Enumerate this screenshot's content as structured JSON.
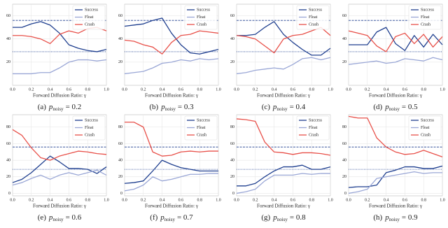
{
  "chart_data": [
    {
      "type": "line",
      "caption_label": "(a)",
      "caption_var": "p",
      "caption_sub": "noisy",
      "caption_value": "= 0.2",
      "x_label": "Forward Diffusion Ratio: γ",
      "x": [
        0,
        0.1,
        0.2,
        0.3,
        0.4,
        0.5,
        0.6,
        0.7,
        0.8,
        0.9,
        1.0
      ],
      "xlim": [
        0,
        1
      ],
      "xticks": [
        {
          "value": 0,
          "label": "0.0"
        },
        {
          "value": 0.2,
          "label": "0.2"
        },
        {
          "value": 0.4,
          "label": "0.4"
        },
        {
          "value": 0.6,
          "label": "0.6"
        },
        {
          "value": 0.8,
          "label": "0.8"
        },
        {
          "value": 1,
          "label": "1.0"
        }
      ],
      "ylim": [
        0,
        70
      ],
      "yticks": [
        20,
        40,
        60
      ],
      "grid": true,
      "legend": "upper right",
      "reference_lines": [
        {
          "value": 56,
          "color": "#1f3f8f",
          "style": "dashed"
        },
        {
          "value": 29,
          "color": "#1f3f8f",
          "style": "dotted"
        }
      ],
      "series": [
        {
          "name": "Success",
          "color": "#1f3f8f",
          "values": [
            50,
            50,
            53,
            55,
            52,
            45,
            35,
            32,
            30,
            29,
            31
          ]
        },
        {
          "name": "Float",
          "color": "#9aa7d6",
          "values": [
            10,
            10,
            10,
            11,
            11,
            15,
            20,
            22,
            22,
            21,
            22
          ]
        },
        {
          "name": "Crash",
          "color": "#e8514a",
          "values": [
            43,
            43,
            42,
            40,
            36,
            44,
            47,
            45,
            49,
            50,
            47
          ]
        }
      ]
    },
    {
      "type": "line",
      "caption_label": "(b)",
      "caption_var": "p",
      "caption_sub": "noisy",
      "caption_value": "= 0.3",
      "x_label": "Forward Diffusion Ratio: γ",
      "x": [
        0,
        0.1,
        0.2,
        0.3,
        0.4,
        0.5,
        0.6,
        0.7,
        0.8,
        0.9,
        1.0
      ],
      "xlim": [
        0,
        1
      ],
      "xticks": [
        {
          "value": 0,
          "label": "0.0"
        },
        {
          "value": 0.2,
          "label": "0.2"
        },
        {
          "value": 0.4,
          "label": "0.4"
        },
        {
          "value": 0.6,
          "label": "0.6"
        },
        {
          "value": 0.8,
          "label": "0.8"
        },
        {
          "value": 1,
          "label": "1.0"
        }
      ],
      "ylim": [
        0,
        70
      ],
      "yticks": [
        20,
        40,
        60
      ],
      "grid": true,
      "legend": "upper right",
      "reference_lines": [
        {
          "value": 56,
          "color": "#1f3f8f",
          "style": "dashed"
        },
        {
          "value": 29,
          "color": "#1f3f8f",
          "style": "dotted"
        }
      ],
      "series": [
        {
          "name": "Success",
          "color": "#1f3f8f",
          "values": [
            51,
            52,
            53,
            56,
            58,
            45,
            35,
            28,
            27,
            29,
            31
          ]
        },
        {
          "name": "Float",
          "color": "#9aa7d6",
          "values": [
            10,
            11,
            12,
            15,
            19,
            20,
            22,
            21,
            23,
            22,
            23
          ]
        },
        {
          "name": "Crash",
          "color": "#e8514a",
          "values": [
            39,
            38,
            35,
            33,
            27,
            37,
            43,
            44,
            47,
            46,
            45
          ]
        }
      ]
    },
    {
      "type": "line",
      "caption_label": "(c)",
      "caption_var": "p",
      "caption_sub": "noisy",
      "caption_value": "= 0.4",
      "x_label": "Forward Diffusion Ratio: γ",
      "x": [
        0,
        0.1,
        0.2,
        0.3,
        0.4,
        0.5,
        0.6,
        0.7,
        0.8,
        0.9,
        1.0
      ],
      "xlim": [
        0,
        1
      ],
      "xticks": [
        {
          "value": 0,
          "label": "0.0"
        },
        {
          "value": 0.2,
          "label": "0.2"
        },
        {
          "value": 0.4,
          "label": "0.4"
        },
        {
          "value": 0.6,
          "label": "0.6"
        },
        {
          "value": 0.8,
          "label": "0.8"
        },
        {
          "value": 1,
          "label": "1.0"
        }
      ],
      "ylim": [
        0,
        70
      ],
      "yticks": [
        20,
        40,
        60
      ],
      "grid": true,
      "legend": "upper right",
      "reference_lines": [
        {
          "value": 56,
          "color": "#1f3f8f",
          "style": "dashed"
        },
        {
          "value": 29,
          "color": "#1f3f8f",
          "style": "dotted"
        }
      ],
      "series": [
        {
          "name": "Success",
          "color": "#1f3f8f",
          "values": [
            43,
            43,
            44,
            50,
            55,
            44,
            37,
            31,
            26,
            26,
            32
          ]
        },
        {
          "name": "Float",
          "color": "#9aa7d6",
          "values": [
            10,
            11,
            13,
            14,
            15,
            14,
            18,
            23,
            24,
            22,
            24
          ]
        },
        {
          "name": "Crash",
          "color": "#e8514a",
          "values": [
            43,
            42,
            40,
            34,
            28,
            40,
            43,
            44,
            47,
            50,
            43
          ]
        }
      ]
    },
    {
      "type": "line",
      "caption_label": "(d)",
      "caption_var": "p",
      "caption_sub": "noisy",
      "caption_value": "= 0.5",
      "x_label": "Forward Diffusion Ratio: γ",
      "x": [
        0,
        0.1,
        0.2,
        0.3,
        0.4,
        0.5,
        0.6,
        0.7,
        0.8,
        0.9,
        1.0
      ],
      "xlim": [
        0,
        1
      ],
      "xticks": [
        {
          "value": 0,
          "label": "0.0"
        },
        {
          "value": 0.2,
          "label": "0.2"
        },
        {
          "value": 0.4,
          "label": "0.4"
        },
        {
          "value": 0.6,
          "label": "0.6"
        },
        {
          "value": 0.8,
          "label": "0.8"
        },
        {
          "value": 1,
          "label": "1.0"
        }
      ],
      "ylim": [
        0,
        70
      ],
      "yticks": [
        20,
        40,
        60
      ],
      "grid": true,
      "legend": "upper right",
      "reference_lines": [
        {
          "value": 56,
          "color": "#1f3f8f",
          "style": "dashed"
        },
        {
          "value": 29,
          "color": "#1f3f8f",
          "style": "dotted"
        }
      ],
      "series": [
        {
          "name": "Success",
          "color": "#1f3f8f",
          "values": [
            35,
            35,
            35,
            46,
            50,
            36,
            30,
            43,
            33,
            44,
            35
          ]
        },
        {
          "name": "Float",
          "color": "#9aa7d6",
          "values": [
            18,
            19,
            20,
            21,
            19,
            20,
            23,
            22,
            21,
            24,
            22
          ]
        },
        {
          "name": "Crash",
          "color": "#e8514a",
          "values": [
            47,
            45,
            43,
            34,
            29,
            42,
            45,
            36,
            44,
            33,
            42
          ]
        }
      ]
    },
    {
      "type": "line",
      "caption_label": "(e)",
      "caption_var": "p",
      "caption_sub": "noisy",
      "caption_value": "= 0.6",
      "x_label": "Forward Diffusion Ratio: γ",
      "x": [
        0,
        0.1,
        0.2,
        0.3,
        0.4,
        0.5,
        0.6,
        0.7,
        0.8,
        0.9,
        1.0
      ],
      "xlim": [
        0,
        1
      ],
      "xticks": [
        {
          "value": 0,
          "label": "0.0"
        },
        {
          "value": 0.2,
          "label": "0.2"
        },
        {
          "value": 0.4,
          "label": "0.4"
        },
        {
          "value": 0.6,
          "label": "0.6"
        },
        {
          "value": 0.8,
          "label": "0.8"
        },
        {
          "value": 1,
          "label": "1.0"
        }
      ],
      "ylim": [
        -3,
        95
      ],
      "yticks": [
        0,
        20,
        40,
        60,
        80
      ],
      "grid": true,
      "legend": "upper right",
      "reference_lines": [
        {
          "value": 56,
          "color": "#1f3f8f",
          "style": "dashed"
        },
        {
          "value": 29,
          "color": "#1f3f8f",
          "style": "dotted"
        }
      ],
      "series": [
        {
          "name": "Success",
          "color": "#1f3f8f",
          "values": [
            13,
            17,
            25,
            35,
            45,
            38,
            30,
            30,
            29,
            24,
            32
          ]
        },
        {
          "name": "Float",
          "color": "#9aa7d6",
          "values": [
            10,
            13,
            18,
            22,
            17,
            22,
            25,
            22,
            25,
            28,
            22
          ]
        },
        {
          "name": "Crash",
          "color": "#e8514a",
          "values": [
            77,
            70,
            55,
            43,
            40,
            45,
            48,
            51,
            50,
            48,
            47
          ]
        }
      ]
    },
    {
      "type": "line",
      "caption_label": "(f)",
      "caption_var": "p",
      "caption_sub": "noisy",
      "caption_value": "= 0.7",
      "x_label": "Forward Diffusion Ratio: γ",
      "x": [
        0,
        0.1,
        0.2,
        0.3,
        0.4,
        0.5,
        0.6,
        0.7,
        0.8,
        0.9,
        1.0
      ],
      "xlim": [
        0,
        1
      ],
      "xticks": [
        {
          "value": 0,
          "label": "0.0"
        },
        {
          "value": 0.2,
          "label": "0.2"
        },
        {
          "value": 0.4,
          "label": "0.4"
        },
        {
          "value": 0.6,
          "label": "0.6"
        },
        {
          "value": 0.8,
          "label": "0.8"
        },
        {
          "value": 1,
          "label": "1.0"
        }
      ],
      "ylim": [
        -3,
        95
      ],
      "yticks": [
        0,
        20,
        40,
        60,
        80
      ],
      "grid": true,
      "legend": "upper right",
      "reference_lines": [
        {
          "value": 56,
          "color": "#1f3f8f",
          "style": "dashed"
        },
        {
          "value": 29,
          "color": "#1f3f8f",
          "style": "dotted"
        }
      ],
      "series": [
        {
          "name": "Success",
          "color": "#1f3f8f",
          "values": [
            12,
            13,
            15,
            27,
            40,
            35,
            31,
            29,
            27,
            27,
            27
          ]
        },
        {
          "name": "Float",
          "color": "#9aa7d6",
          "values": [
            3,
            5,
            10,
            20,
            15,
            17,
            20,
            23,
            23,
            24,
            24
          ]
        },
        {
          "name": "Crash",
          "color": "#e8514a",
          "values": [
            86,
            86,
            80,
            50,
            45,
            46,
            50,
            51,
            50,
            51,
            51
          ]
        }
      ]
    },
    {
      "type": "line",
      "caption_label": "(g)",
      "caption_var": "p",
      "caption_sub": "noisy",
      "caption_value": "= 0.8",
      "x_label": "Forward Diffusion Ratio: γ",
      "x": [
        0,
        0.1,
        0.2,
        0.3,
        0.4,
        0.5,
        0.6,
        0.7,
        0.8,
        0.9,
        1.0
      ],
      "xlim": [
        0,
        1
      ],
      "xticks": [
        {
          "value": 0,
          "label": "0.0"
        },
        {
          "value": 0.2,
          "label": "0.2"
        },
        {
          "value": 0.4,
          "label": "0.4"
        },
        {
          "value": 0.6,
          "label": "0.6"
        },
        {
          "value": 0.8,
          "label": "0.8"
        },
        {
          "value": 1,
          "label": "1.0"
        }
      ],
      "ylim": [
        -3,
        95
      ],
      "yticks": [
        0,
        20,
        40,
        60,
        80
      ],
      "grid": true,
      "legend": "upper right",
      "reference_lines": [
        {
          "value": 56,
          "color": "#1f3f8f",
          "style": "dashed"
        },
        {
          "value": 29,
          "color": "#1f3f8f",
          "style": "dotted"
        }
      ],
      "series": [
        {
          "name": "Success",
          "color": "#1f3f8f",
          "values": [
            9,
            9,
            12,
            20,
            27,
            32,
            32,
            34,
            29,
            29,
            32
          ]
        },
        {
          "name": "Float",
          "color": "#9aa7d6",
          "values": [
            0,
            2,
            5,
            15,
            22,
            22,
            22,
            24,
            23,
            24,
            24
          ]
        },
        {
          "name": "Crash",
          "color": "#e8514a",
          "values": [
            90,
            89,
            87,
            62,
            50,
            49,
            47,
            49,
            49,
            48,
            46
          ]
        }
      ]
    },
    {
      "type": "line",
      "caption_label": "(h)",
      "caption_var": "p",
      "caption_sub": "noisy",
      "caption_value": "= 0.9",
      "x_label": "Forward Diffusion Ratio: γ",
      "x": [
        0,
        0.1,
        0.2,
        0.3,
        0.4,
        0.5,
        0.6,
        0.7,
        0.8,
        0.9,
        1.0
      ],
      "xlim": [
        0,
        1
      ],
      "xticks": [
        {
          "value": 0,
          "label": "0.0"
        },
        {
          "value": 0.2,
          "label": "0.2"
        },
        {
          "value": 0.4,
          "label": "0.4"
        },
        {
          "value": 0.6,
          "label": "0.6"
        },
        {
          "value": 0.8,
          "label": "0.8"
        },
        {
          "value": 1,
          "label": "1.0"
        }
      ],
      "ylim": [
        -3,
        95
      ],
      "yticks": [
        0,
        20,
        40,
        60,
        80
      ],
      "grid": true,
      "legend": "upper right",
      "reference_lines": [
        {
          "value": 56,
          "color": "#1f3f8f",
          "style": "dashed"
        },
        {
          "value": 29,
          "color": "#1f3f8f",
          "style": "dotted"
        }
      ],
      "series": [
        {
          "name": "Success",
          "color": "#1f3f8f",
          "values": [
            7,
            8,
            8,
            10,
            25,
            28,
            32,
            32,
            30,
            30,
            33
          ]
        },
        {
          "name": "Float",
          "color": "#9aa7d6",
          "values": [
            0,
            2,
            5,
            18,
            20,
            22,
            24,
            26,
            24,
            25,
            25
          ]
        },
        {
          "name": "Crash",
          "color": "#e8514a",
          "values": [
            93,
            91,
            91,
            67,
            56,
            50,
            47,
            48,
            52,
            48,
            44
          ]
        }
      ]
    }
  ]
}
